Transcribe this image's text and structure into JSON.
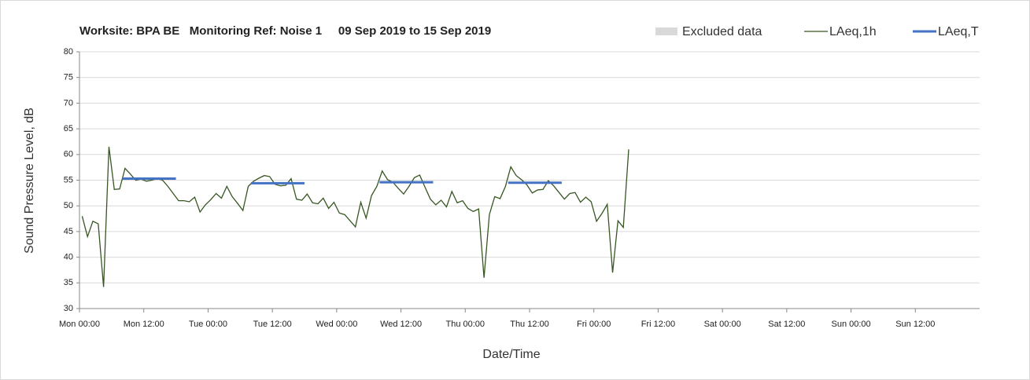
{
  "chart_data": {
    "type": "line",
    "title": "Worksite: BPA BE   Monitoring Ref: Noise 1     09 Sep 2019 to 15 Sep 2019",
    "xlabel": "Date/Time",
    "ylabel": "Sound Pressure Level, dB",
    "xlim": [
      0,
      168
    ],
    "xticks": [
      {
        "value": 0,
        "label": "Mon 00:00"
      },
      {
        "value": 12,
        "label": "Mon 12:00"
      },
      {
        "value": 24,
        "label": "Tue 00:00"
      },
      {
        "value": 36,
        "label": "Tue 12:00"
      },
      {
        "value": 48,
        "label": "Wed 00:00"
      },
      {
        "value": 60,
        "label": "Wed 12:00"
      },
      {
        "value": 72,
        "label": "Thu 00:00"
      },
      {
        "value": 84,
        "label": "Thu 12:00"
      },
      {
        "value": 96,
        "label": "Fri 00:00"
      },
      {
        "value": 108,
        "label": "Fri 12:00"
      },
      {
        "value": 120,
        "label": "Sat 00:00"
      },
      {
        "value": 132,
        "label": "Sat 12:00"
      },
      {
        "value": 144,
        "label": "Sun 00:00"
      },
      {
        "value": 156,
        "label": "Sun 12:00"
      }
    ],
    "ylim": [
      30,
      80
    ],
    "yticks": [
      30,
      35,
      40,
      45,
      50,
      55,
      60,
      65,
      70,
      75,
      80
    ],
    "grid": true,
    "legend": "top-right",
    "x": [
      0.5,
      1.5,
      2.5,
      3.5,
      4.5,
      5.5,
      6.5,
      7.5,
      8.5,
      9.5,
      10.5,
      11.5,
      12.5,
      13.5,
      14.5,
      15.5,
      16.5,
      17.5,
      18.5,
      19.5,
      20.5,
      21.5,
      22.5,
      23.5,
      24.5,
      25.5,
      26.5,
      27.5,
      28.5,
      29.5,
      30.5,
      31.5,
      32.5,
      33.5,
      34.5,
      35.5,
      36.5,
      37.5,
      38.5,
      39.5,
      40.5,
      41.5,
      42.5,
      43.5,
      44.5,
      45.5,
      46.5,
      47.5,
      48.5,
      49.5,
      50.5,
      51.5,
      52.5,
      53.5,
      54.5,
      55.5,
      56.5,
      57.5,
      58.5,
      59.5,
      60.5,
      61.5,
      62.5,
      63.5,
      64.5,
      65.5,
      66.5,
      67.5,
      68.5,
      69.5,
      70.5,
      71.5,
      72.5,
      73.5,
      74.5,
      75.5,
      76.5,
      77.5,
      78.5,
      79.5,
      80.5,
      81.5,
      82.5,
      83.5,
      84.5,
      85.5,
      86.5,
      87.5,
      88.5,
      89.5,
      90.5,
      91.5,
      92.5,
      93.5,
      94.5,
      95.5,
      96.5,
      97.5,
      98.5,
      99.5,
      100.5,
      101.5,
      102.5
    ],
    "series": [
      {
        "name": "Excluded data",
        "color": "#d9d9d9",
        "periods": []
      },
      {
        "name": "LAeq,1h",
        "color": "#375623",
        "values": [
          48,
          44,
          47,
          46.5,
          34.2,
          61.5,
          53.2,
          53.3,
          57.3,
          56.2,
          55,
          55.2,
          54.8,
          55,
          55.3,
          55,
          53.8,
          52.4,
          51,
          51,
          50.8,
          51.7,
          48.8,
          50.2,
          51.2,
          52.4,
          51.5,
          53.8,
          51.8,
          50.5,
          49.1,
          53.8,
          54.8,
          55.4,
          55.9,
          55.7,
          54.2,
          53.9,
          54,
          55.3,
          51.3,
          51.1,
          52.3,
          50.6,
          50.4,
          51.5,
          49.5,
          50.7,
          48.6,
          48.3,
          47.1,
          45.9,
          50.7,
          47.6,
          52,
          53.8,
          56.8,
          55.1,
          54.6,
          53.4,
          52.3,
          53.8,
          55.5,
          56,
          53.6,
          51.3,
          50.2,
          51.1,
          49.8,
          52.8,
          50.6,
          51,
          49.5,
          48.9,
          49.4,
          36,
          48.3,
          51.8,
          51.4,
          53.8,
          57.6,
          55.9,
          55.1,
          54.1,
          52.5,
          53.1,
          53.2,
          54.9,
          53.9,
          52.6,
          51.3,
          52.4,
          52.6,
          50.7,
          51.7,
          50.8,
          47,
          48.5,
          50.3,
          37,
          47.1,
          45.8,
          61
        ]
      },
      {
        "name": "LAeq,T",
        "color": "#4472c4",
        "segments": [
          {
            "x": [
              8,
              18
            ],
            "value": 55.3
          },
          {
            "x": [
              32,
              42
            ],
            "value": 54.4
          },
          {
            "x": [
              56,
              66
            ],
            "value": 54.6
          },
          {
            "x": [
              80,
              90
            ],
            "value": 54.5
          }
        ]
      }
    ]
  }
}
